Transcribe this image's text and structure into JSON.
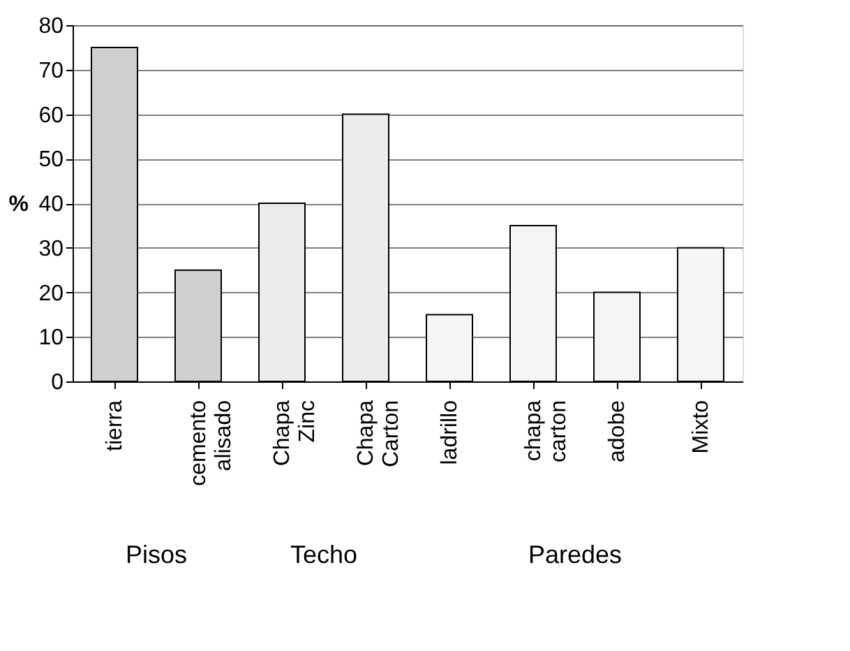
{
  "chart_data": {
    "type": "bar",
    "ylabel": "%",
    "categories": [
      "tierra",
      "cemento alisado",
      "Chapa Zinc",
      "Chapa Carton",
      "ladrillo",
      "chapa carton",
      "adobe",
      "Mixto"
    ],
    "values": [
      75,
      25,
      40,
      60,
      15,
      35,
      20,
      30
    ],
    "colors": [
      "#d0d0d0",
      "#d0d0d0",
      "#ececec",
      "#ececec",
      "#f5f5f5",
      "#f5f5f5",
      "#f5f5f5",
      "#f5f5f5"
    ],
    "ylim": [
      0,
      80
    ],
    "yticks": [
      0,
      10,
      20,
      30,
      40,
      50,
      60,
      70,
      80
    ],
    "grid": "y",
    "annotations": [
      "Pisos",
      "Techo",
      "Paredes"
    ]
  }
}
